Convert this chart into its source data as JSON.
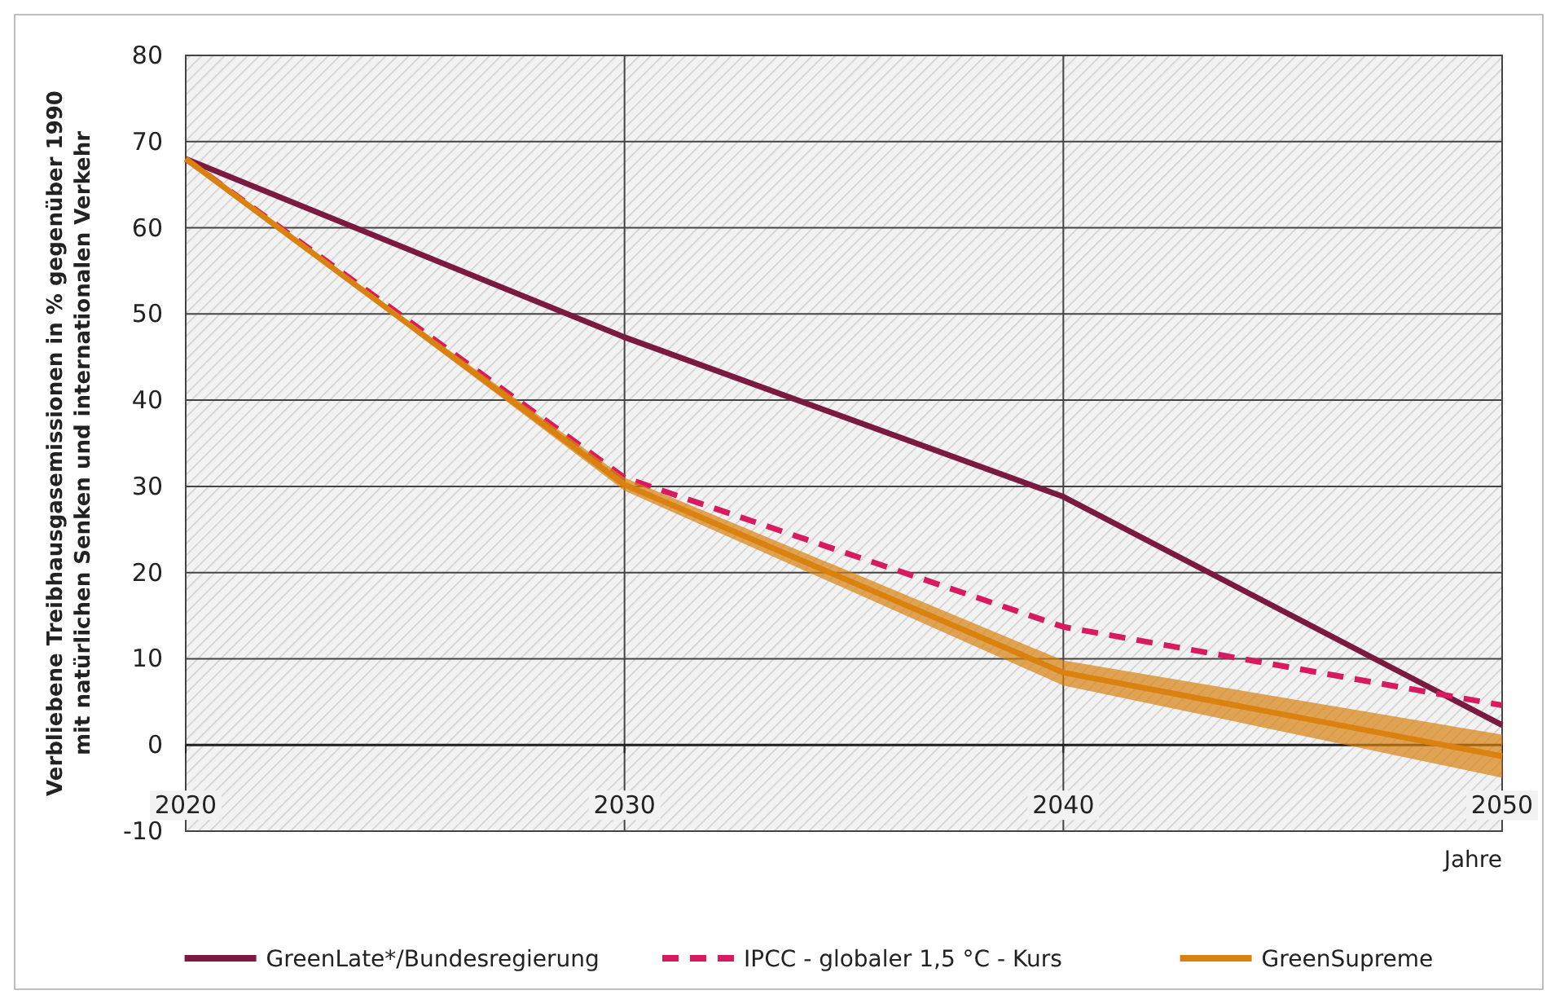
{
  "chart_data": {
    "type": "line",
    "x": [
      2020,
      2030,
      2040,
      2050
    ],
    "xlim": [
      2020,
      2050
    ],
    "xticks": [
      2020,
      2030,
      2040,
      2050
    ],
    "ylim": [
      -10,
      80
    ],
    "yticks": [
      -10,
      0,
      10,
      20,
      30,
      40,
      50,
      60,
      70,
      80
    ],
    "xlabel": "Jahre",
    "ylabel": "Verbliebene Treibhausgasemissionen in % gegenüber 1990\nmit natürlichen Senken und internationalen Verkehr",
    "grid": true,
    "legend": "bottom",
    "series": [
      {
        "name": "GreenLate*/Bundesregierung",
        "color": "#7b1a40",
        "values": [
          68,
          47.3,
          28.8,
          2.3
        ]
      },
      {
        "name": "IPCC - globaler 1,5 °C - Kurs",
        "color": "#d81b60",
        "line_style": "dashed",
        "values": [
          68,
          31,
          13.7,
          4.6
        ]
      },
      {
        "name": "GreenSupreme",
        "color": "#d9820f",
        "values": [
          68,
          30.2,
          8.4,
          -1.3
        ],
        "lower": [
          68,
          29.5,
          6.9,
          -3.8
        ],
        "upper": [
          68,
          31,
          9.8,
          1.2
        ]
      }
    ]
  }
}
